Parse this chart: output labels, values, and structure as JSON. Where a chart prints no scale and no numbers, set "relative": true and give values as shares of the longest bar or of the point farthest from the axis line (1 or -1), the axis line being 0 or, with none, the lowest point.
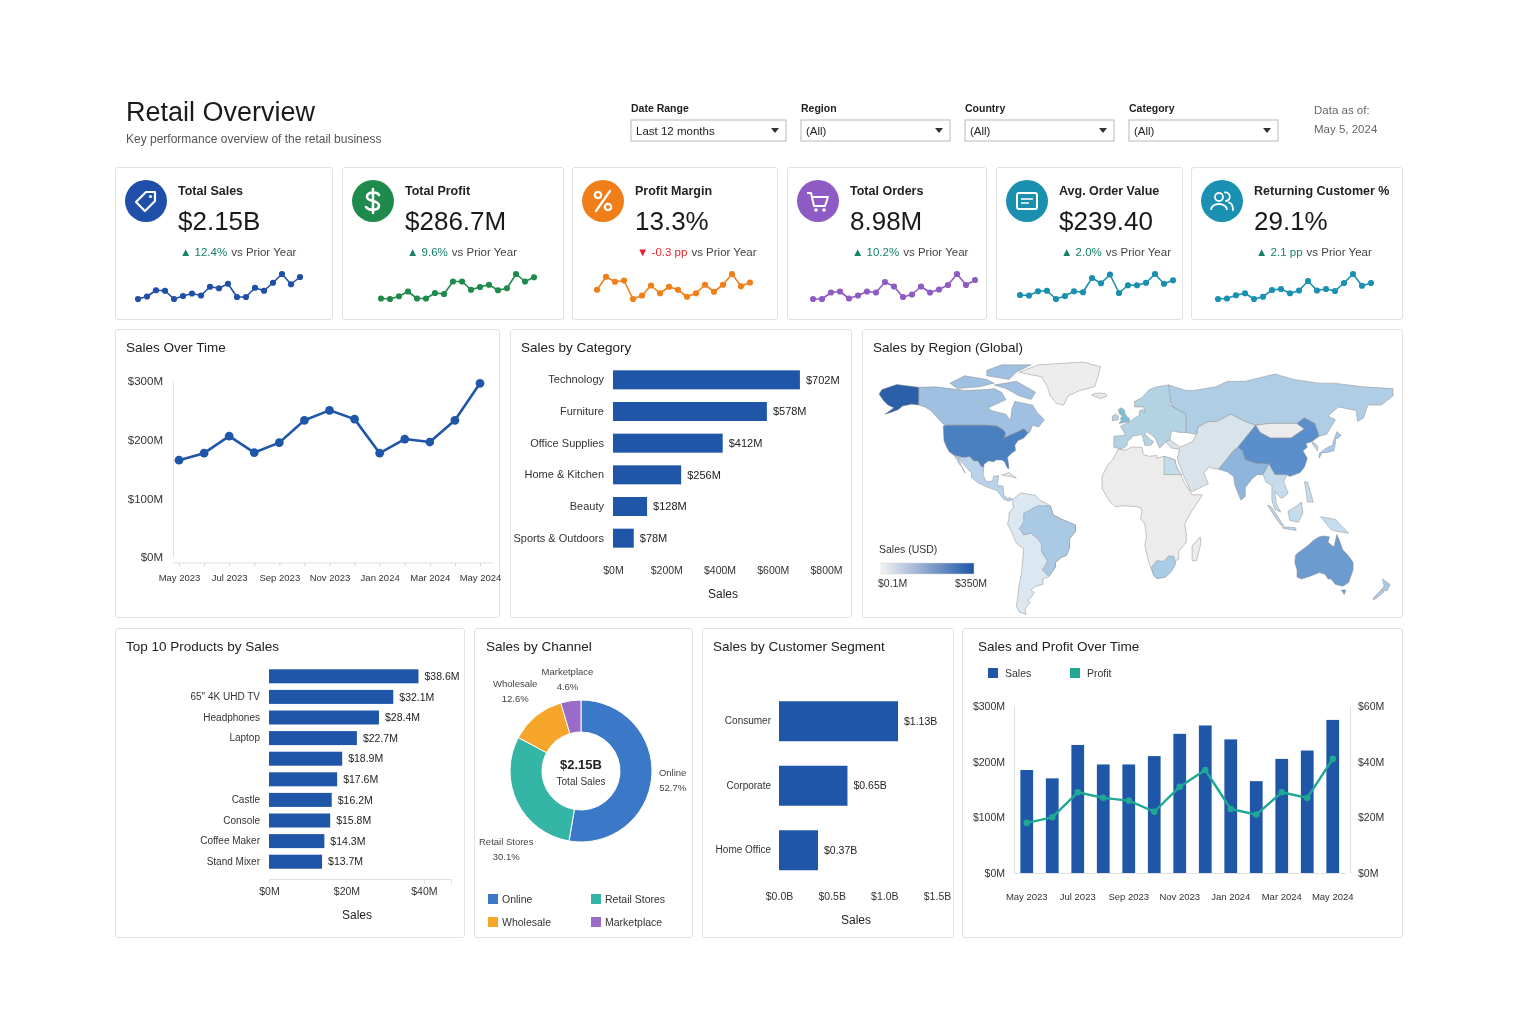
{
  "chart_data": [
    {
      "type": "other",
      "title": "Retail Overview",
      "subtitle": "Key performance overview of the retail business",
      "annotations": [
        "Date Range",
        "Last 12 months",
        "Region",
        "(All)",
        "Country",
        "(All)",
        "Category",
        "(All)",
        "Data as of:",
        "May 5, 2024"
      ]
    },
    {
      "type": "line",
      "relative": true,
      "marker": "circle",
      "categories": [
        null,
        null,
        null,
        null,
        null,
        null,
        null,
        null,
        null,
        null,
        null,
        null,
        null,
        null,
        null,
        null,
        null,
        null,
        null,
        null,
        null,
        null,
        null,
        null,
        null,
        null,
        null,
        null,
        null,
        null,
        null,
        null,
        null,
        null,
        null,
        null,
        null,
        null,
        null,
        null,
        null,
        null,
        null,
        null,
        null,
        null,
        null,
        null,
        null,
        null,
        null,
        null,
        null,
        null,
        null,
        null,
        null,
        null,
        null,
        null,
        null,
        null,
        null,
        null,
        null,
        null,
        null,
        null,
        null,
        null,
        null,
        null,
        null,
        null,
        null,
        null,
        null,
        null,
        null,
        null,
        null,
        null,
        null,
        null,
        null,
        null,
        null,
        null,
        null,
        null,
        null,
        null,
        null,
        null,
        null,
        null,
        null,
        null,
        null,
        null,
        null,
        null,
        null,
        null,
        null,
        null,
        null,
        null,
        null,
        null,
        null,
        null,
        null,
        null,
        null,
        null,
        null,
        null,
        null,
        null,
        null,
        null,
        null,
        null,
        null,
        null,
        null,
        null,
        null,
        null,
        null,
        null,
        null,
        null,
        null,
        null,
        null,
        null
      ],
      "series": [
        {
          "color": "#1f4fa8",
          "values": [
            0,
            0.1,
            0.35,
            0.33,
            0,
            0.12,
            0.22,
            0.14,
            0.49,
            0.43,
            0.61,
            0.08,
            0.08,
            0.45,
            0.33,
            0.65,
            1,
            0.59,
            0.88,
            null,
            null,
            null,
            null,
            null,
            null,
            null,
            null,
            null,
            null,
            null,
            null,
            null,
            null,
            null,
            null,
            null,
            null,
            null,
            null,
            null,
            null,
            null,
            null,
            null,
            null,
            null,
            null,
            null,
            null,
            null,
            null,
            null,
            null,
            null,
            null,
            null,
            null,
            null,
            null,
            null,
            null,
            null,
            null,
            null,
            null,
            null,
            null,
            null,
            null,
            null,
            null,
            null,
            null,
            null,
            null,
            null,
            null,
            null,
            null,
            null,
            null,
            null,
            null,
            null,
            null,
            null,
            null,
            null,
            null,
            null,
            null,
            null,
            null,
            null,
            null,
            null,
            null,
            null,
            null,
            null,
            null,
            null,
            null,
            null,
            null,
            null,
            null,
            null,
            null,
            null,
            null,
            null,
            null,
            null,
            null,
            null,
            null,
            null,
            null,
            null,
            null,
            null,
            null,
            null,
            null,
            null,
            null,
            null,
            null,
            null,
            null,
            null,
            null,
            null,
            null,
            null,
            null,
            null
          ]
        },
        {
          "color": "#1e8a4c",
          "values": [
            null,
            null,
            null,
            null,
            null,
            null,
            null,
            null,
            null,
            null,
            null,
            null,
            null,
            null,
            null,
            null,
            null,
            null,
            null,
            null,
            null,
            null,
            null,
            null,
            null,
            null,
            null,
            0.02,
            0,
            0.11,
            0.3,
            0.02,
            0.02,
            0.24,
            0.2,
            0.7,
            0.7,
            0.37,
            0.48,
            0.57,
            0.35,
            0.43,
            1,
            0.7,
            0.87,
            null,
            null,
            null,
            null,
            null,
            null,
            null,
            null,
            null,
            null,
            null,
            null,
            null,
            null,
            null,
            null,
            null,
            null,
            null,
            null,
            null,
            null,
            null,
            null,
            null,
            null,
            null,
            null,
            null,
            null,
            null,
            null,
            null,
            null,
            null,
            null,
            null,
            null,
            null,
            null,
            null,
            null,
            null,
            null,
            null,
            null,
            null,
            null,
            null,
            null,
            null,
            null,
            null,
            null,
            null,
            null,
            null,
            null,
            null,
            null,
            null,
            null,
            null,
            null,
            null,
            null,
            null,
            null,
            null,
            null,
            null,
            null,
            null,
            null,
            null,
            null,
            null,
            null,
            null,
            null,
            null,
            null,
            null,
            null,
            null,
            null,
            null,
            null,
            null,
            null,
            null,
            null,
            null
          ]
        },
        {
          "color": "#f07f1a",
          "values": [
            null,
            null,
            null,
            null,
            null,
            null,
            null,
            null,
            null,
            null,
            null,
            null,
            null,
            null,
            null,
            null,
            null,
            null,
            null,
            null,
            null,
            null,
            null,
            null,
            null,
            null,
            null,
            null,
            null,
            null,
            null,
            null,
            null,
            null,
            null,
            null,
            null,
            null,
            null,
            null,
            null,
            null,
            null,
            null,
            null,
            null,
            null,
            null,
            null,
            null,
            null,
            0.37,
            0.89,
            0.69,
            0.74,
            0,
            0.14,
            0.54,
            0.23,
            0.49,
            0.37,
            0.09,
            0.23,
            0.57,
            0.29,
            0.57,
            1,
            0.51,
            0.66,
            null,
            null,
            null,
            null,
            null,
            null,
            null,
            null,
            null,
            null,
            null,
            null,
            null,
            null,
            null,
            null,
            null,
            null,
            null,
            null,
            null,
            null,
            null,
            null,
            null,
            null,
            null,
            null,
            null,
            null,
            null,
            null,
            null,
            null,
            null,
            null,
            null,
            null,
            null,
            null,
            null,
            null,
            null,
            null,
            null,
            null,
            null,
            null,
            null,
            null,
            null,
            null,
            null,
            null,
            null,
            null,
            null,
            null,
            null,
            null,
            null,
            null,
            null,
            null,
            null,
            null,
            null,
            null,
            null
          ]
        },
        {
          "color": "#8e5bc4",
          "values": [
            null,
            null,
            null,
            null,
            null,
            null,
            null,
            null,
            null,
            null,
            null,
            null,
            null,
            null,
            null,
            null,
            null,
            null,
            null,
            null,
            null,
            null,
            null,
            null,
            null,
            null,
            null,
            null,
            null,
            null,
            null,
            null,
            null,
            null,
            null,
            null,
            null,
            null,
            null,
            null,
            null,
            null,
            null,
            null,
            null,
            null,
            null,
            null,
            null,
            null,
            null,
            null,
            null,
            null,
            null,
            null,
            null,
            null,
            null,
            null,
            null,
            null,
            null,
            null,
            null,
            null,
            null,
            null,
            null,
            null,
            null,
            null,
            null,
            null,
            null,
            0,
            0,
            0.26,
            0.3,
            0.02,
            0.14,
            0.3,
            0.26,
            0.68,
            0.5,
            0.08,
            0.18,
            0.5,
            0.26,
            0.38,
            0.56,
            1,
            0.56,
            0.76,
            null,
            null,
            null,
            null,
            null,
            null,
            null,
            null,
            null,
            null,
            null,
            null,
            null,
            null,
            null,
            null,
            null,
            null,
            null,
            null,
            null,
            null,
            null,
            null,
            null,
            null,
            null,
            null,
            null,
            null,
            null,
            null,
            null,
            null,
            null,
            null,
            null,
            null,
            null,
            null,
            null,
            null,
            null,
            null
          ]
        },
        {
          "color": "#1a8fae",
          "values": [
            null,
            null,
            null,
            null,
            null,
            null,
            null,
            null,
            null,
            null,
            null,
            null,
            null,
            null,
            null,
            null,
            null,
            null,
            null,
            null,
            null,
            null,
            null,
            null,
            null,
            null,
            null,
            null,
            null,
            null,
            null,
            null,
            null,
            null,
            null,
            null,
            null,
            null,
            null,
            null,
            null,
            null,
            null,
            null,
            null,
            null,
            null,
            null,
            null,
            null,
            null,
            null,
            null,
            null,
            null,
            null,
            null,
            null,
            null,
            null,
            null,
            null,
            null,
            null,
            null,
            null,
            null,
            null,
            null,
            null,
            null,
            null,
            null,
            null,
            null,
            null,
            null,
            null,
            null,
            null,
            null,
            null,
            null,
            null,
            null,
            null,
            null,
            null,
            null,
            null,
            null,
            null,
            null,
            null,
            null,
            null,
            null,
            null,
            0.16,
            0.14,
            0.31,
            0.33,
            0,
            0.12,
            0.31,
            0.27,
            0.84,
            0.63,
            0.98,
            0.24,
            0.55,
            0.55,
            0.65,
            1,
            0.61,
            0.75,
            null,
            null,
            null,
            null,
            null,
            null,
            null,
            null,
            null,
            null,
            null,
            null,
            null,
            null,
            null,
            null,
            null,
            null,
            null,
            null,
            null,
            null
          ]
        },
        {
          "color": "#1a91b2",
          "values": [
            null,
            null,
            null,
            null,
            null,
            null,
            null,
            null,
            null,
            null,
            null,
            null,
            null,
            null,
            null,
            null,
            null,
            null,
            null,
            null,
            null,
            null,
            null,
            null,
            null,
            null,
            null,
            null,
            null,
            null,
            null,
            null,
            null,
            null,
            null,
            null,
            null,
            null,
            null,
            null,
            null,
            null,
            null,
            null,
            null,
            null,
            null,
            null,
            null,
            null,
            null,
            null,
            null,
            null,
            null,
            null,
            null,
            null,
            null,
            null,
            null,
            null,
            null,
            null,
            null,
            null,
            null,
            null,
            null,
            null,
            null,
            null,
            null,
            null,
            null,
            null,
            null,
            null,
            null,
            null,
            null,
            null,
            null,
            null,
            null,
            null,
            null,
            null,
            null,
            null,
            null,
            null,
            null,
            null,
            null,
            null,
            null,
            null,
            null,
            null,
            null,
            null,
            null,
            null,
            null,
            null,
            null,
            null,
            null,
            null,
            null,
            null,
            null,
            null,
            null,
            null,
            null,
            null,
            null,
            null,
            0,
            0.02,
            0.15,
            0.23,
            0,
            0.09,
            0.36,
            0.4,
            0.23,
            0.34,
            0.72,
            0.34,
            0.4,
            0.32,
            0.64,
            1,
            0.53,
            0.64
          ]
        }
      ],
      "colors": [
        "#17806a",
        "#17806a",
        "#e3232b",
        "#17806a",
        "#17806a",
        "#17806a"
      ],
      "annotations": [
        "Total Sales",
        "$2.15B",
        "▲ 12.4%",
        "vs Prior Year",
        "Total Profit",
        "$286.7M",
        "▲ 9.6%",
        "vs Prior Year",
        "Profit Margin",
        "13.3%",
        "▼ -0.3 pp",
        "vs Prior Year",
        "Total Orders",
        "8.98M",
        "▲ 10.2%",
        "vs Prior Year",
        "Avg. Order Value",
        "$239.40",
        "▲ 2.0%",
        "vs Prior Year",
        "Returning Customer %",
        "29.1%",
        "▲ 2.1 pp",
        "vs Prior Year"
      ]
    },
    {
      "type": "line",
      "title": "Sales Over Time",
      "categories": [
        "May 2023",
        null,
        "Jul 2023",
        null,
        "Sep 2023",
        null,
        "Nov 2023",
        null,
        "Jan 2024",
        null,
        "Mar 2024",
        null,
        "May 2024"
      ],
      "values": [
        165,
        177,
        206,
        178,
        195,
        233,
        250,
        235,
        177,
        201,
        196,
        233,
        296
      ],
      "color": "#1f56a8",
      "marker": "circle",
      "ylim": [
        0,
        300
      ],
      "yticks": [
        {
          "value": 0,
          "label": "$0M"
        },
        {
          "value": 100,
          "label": "$100M"
        },
        {
          "value": 200,
          "label": "$200M"
        },
        {
          "value": 300,
          "label": "$300M"
        }
      ]
    },
    {
      "type": "bar",
      "orientation": "horizontal",
      "title": "Sales by Category",
      "categories": [
        "Technology",
        "Furniture",
        "Office Supplies",
        "Home & Kitchen",
        "Beauty",
        "Sports & Outdoors"
      ],
      "values": [
        702,
        578,
        412,
        256,
        128,
        78
      ],
      "value_labels": [
        "$702M",
        "$578M",
        "$412M",
        "$256M",
        "$128M",
        "$78M"
      ],
      "color": "#1f56a8",
      "xlim": [
        0,
        800
      ],
      "xticks": [
        {
          "value": 0,
          "label": "$0M"
        },
        {
          "value": 200,
          "label": "$200M"
        },
        {
          "value": 400,
          "label": "$400M"
        },
        {
          "value": 600,
          "label": "$600M"
        },
        {
          "value": 800,
          "label": "$800M"
        }
      ],
      "xlabel": "Sales"
    },
    {
      "type": "other",
      "title": "Sales by Region (Global)",
      "annotations": [
        "Sales (USD)",
        "$0.1M",
        "$350M"
      ]
    },
    {
      "type": "bar",
      "orientation": "horizontal",
      "title": "Top 10 Products by Sales",
      "categories": [
        null,
        "65\" 4K UHD TV",
        "Headphones",
        "Laptop",
        null,
        null,
        "Castle",
        "Console",
        "Coffee Maker",
        "Stand Mixer"
      ],
      "values": [
        38.6,
        32.1,
        28.4,
        22.7,
        18.9,
        17.6,
        16.2,
        15.8,
        14.3,
        13.7
      ],
      "value_labels": [
        "$38.6M",
        "$32.1M",
        "$28.4M",
        "$22.7M",
        "$18.9M",
        "$17.6M",
        "$16.2M",
        "$15.8M",
        "$14.3M",
        "$13.7M"
      ],
      "color": "#1f56a8",
      "xlim": [
        0,
        47
      ],
      "xticks": [
        {
          "value": 0,
          "label": "$0M"
        },
        {
          "value": 20,
          "label": "$20M"
        },
        {
          "value": 40,
          "label": "$40M"
        }
      ],
      "xlabel": "Sales"
    },
    {
      "type": "donut",
      "title": "Sales by Channel",
      "categories": [
        "Online",
        "Retail Stores",
        "Wholesale",
        "Marketplace"
      ],
      "values": [
        52.7,
        30.1,
        12.6,
        4.6
      ],
      "value_labels": [
        "52.7%",
        "30.1%",
        "12.6%",
        "4.6%"
      ],
      "colors": [
        "#3b78c8",
        "#35b5a5",
        "#f5a52a",
        "#9a6cc8"
      ],
      "annotations": [
        "$2.15B",
        "Total Sales"
      ],
      "legend": "bottom"
    },
    {
      "type": "bar",
      "orientation": "horizontal",
      "title": "Sales by Customer Segment",
      "categories": [
        "Consumer",
        "Corporate",
        "Home Office"
      ],
      "values": [
        1.13,
        0.65,
        0.37
      ],
      "value_labels": [
        "$1.13B",
        "$0.65B",
        "$0.37B"
      ],
      "color": "#1f56a8",
      "xlim": [
        0,
        1.5
      ],
      "xticks": [
        {
          "value": 0,
          "label": "$0.0B"
        },
        {
          "value": 0.5,
          "label": "$0.5B"
        },
        {
          "value": 1,
          "label": "$1.0B"
        },
        {
          "value": 1.5,
          "label": "$1.5B"
        }
      ],
      "xlabel": "Sales"
    },
    {
      "type": "bar",
      "title": "Sales and Profit Over Time",
      "categories": [
        "May 2023",
        null,
        "Jul 2023",
        null,
        "Sep 2023",
        null,
        "Nov 2023",
        null,
        "Jan 2024",
        null,
        "Mar 2024",
        null,
        "May 2024"
      ],
      "series": [
        {
          "name": "Sales",
          "color": "#1f56a8",
          "values": [
            185,
            170,
            230,
            195,
            195,
            210,
            250,
            265,
            240,
            165,
            205,
            220,
            275
          ]
        },
        {
          "name": "Profit",
          "type": "line",
          "axis": "y2",
          "color": "#20a894",
          "values": [
            18,
            20,
            29,
            27,
            26,
            22,
            31,
            37,
            23,
            21,
            29,
            27,
            41
          ]
        }
      ],
      "ylim": [
        0,
        300
      ],
      "yticks": [
        {
          "value": 0,
          "label": "$0M"
        },
        {
          "value": 100,
          "label": "$100M"
        },
        {
          "value": 200,
          "label": "$200M"
        },
        {
          "value": 300,
          "label": "$300M"
        }
      ],
      "y2lim": [
        0,
        60
      ],
      "y2ticks": [
        {
          "value": 0,
          "label": "$0M"
        },
        {
          "value": 20,
          "label": "$20M"
        },
        {
          "value": 40,
          "label": "$40M"
        },
        {
          "value": 60,
          "label": "$60M"
        }
      ],
      "legend": "top left",
      "marker": "circle"
    }
  ]
}
